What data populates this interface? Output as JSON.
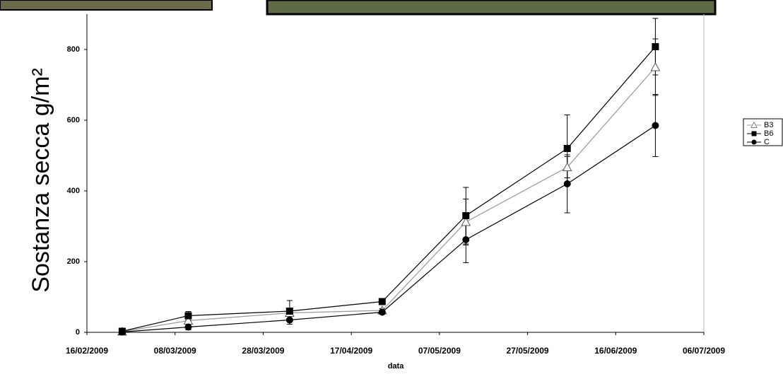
{
  "chart_data": {
    "type": "line",
    "x_label": "data",
    "y_label": "Sostanza secca g/m²",
    "x": [
      "24/02/2009",
      "11/03/2009",
      "03/04/2009",
      "24/04/2009",
      "13/05/2009",
      "05/06/2009",
      "25/06/2009"
    ],
    "series": [
      {
        "name": "B3",
        "color": "#999999",
        "marker": "triangle-open",
        "values": [
          2,
          33,
          55,
          62,
          312,
          467,
          750
        ],
        "errors": [
          2,
          10,
          10,
          5,
          65,
          30,
          80
        ]
      },
      {
        "name": "B6",
        "color": "#000000",
        "marker": "square",
        "values": [
          3,
          47,
          60,
          87,
          330,
          520,
          808
        ],
        "errors": [
          3,
          12,
          30,
          5,
          80,
          95,
          80
        ]
      },
      {
        "name": "C",
        "color": "#000000",
        "marker": "circle",
        "values": [
          1,
          15,
          35,
          57,
          262,
          420,
          585
        ],
        "errors": [
          2,
          8,
          12,
          6,
          65,
          82,
          88
        ]
      }
    ],
    "xlim": [
      "16/02/2009",
      "06/07/2009"
    ],
    "xticks": [
      "16/02/2009",
      "08/03/2009",
      "28/03/2009",
      "17/04/2009",
      "07/05/2009",
      "27/05/2009",
      "16/06/2009",
      "06/07/2009"
    ],
    "ylim": [
      0,
      900
    ],
    "yticks": [
      0,
      200,
      400,
      600,
      800
    ],
    "grid": false,
    "legend": "right"
  }
}
